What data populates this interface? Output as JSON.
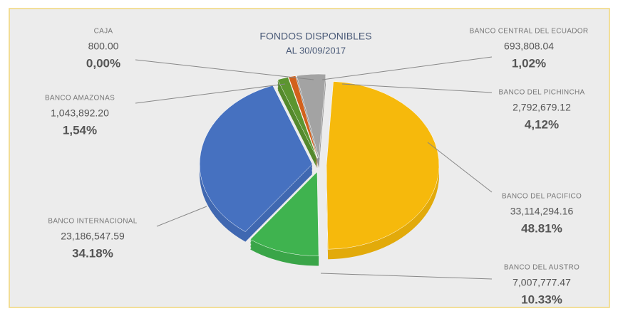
{
  "chart_data": {
    "type": "pie",
    "title": "FONDOS DISPONIBLES",
    "subtitle": "AL 30/09/2017",
    "categories": [
      "CAJA",
      "BANCO CENTRAL DEL ECUADOR",
      "BANCO DEL PICHINCHA",
      "BANCO DEL PACIFICO",
      "BANCO DEL AUSTRO",
      "BANCO INTERNACIONAL",
      "BANCO AMAZONAS"
    ],
    "values": [
      0,
      1.02,
      4.12,
      48.81,
      10.33,
      34.18,
      1.54
    ],
    "value_labels": [
      "0,00%",
      "1,02%",
      "4,12%",
      "48.81%",
      "10.33%",
      "34.18%",
      "1,54%"
    ],
    "amounts": [
      800,
      693808.04,
      2792679.12,
      33114294.16,
      7007777.47,
      23186547.59,
      1043892.2
    ],
    "amount_labels": [
      "800.00",
      "693,808.04",
      "2,792,679.12",
      "33,114,294.16",
      "7,007,777.47",
      "23,186,547.59",
      "1,043,892.20"
    ],
    "colors": [
      "#3d66ad",
      "#d2611c",
      "#a3a3a3",
      "#f6b90c",
      "#3fb34f",
      "#4671c0",
      "#5c9530"
    ]
  }
}
